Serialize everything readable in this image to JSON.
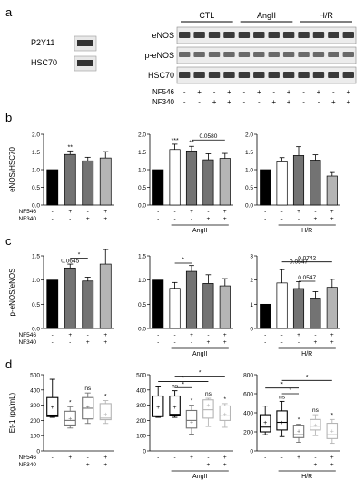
{
  "panel_letters": {
    "a": "a",
    "b": "b",
    "c": "c",
    "d": "d"
  },
  "western": {
    "small_labels": [
      "P2Y11",
      "HSC70"
    ],
    "group_labels": [
      "CTL",
      "AngII",
      "H/R"
    ],
    "row_labels": [
      "eNOS",
      "p-eNOS",
      "HSC70"
    ],
    "treatment_rows": [
      {
        "name": "NF546",
        "signs": [
          "-",
          "+",
          "-",
          "+",
          "-",
          "+",
          "-",
          "+",
          "-",
          "+",
          "-",
          "+"
        ]
      },
      {
        "name": "NF340",
        "signs": [
          "-",
          "-",
          "+",
          "+",
          "-",
          "-",
          "+",
          "+",
          "-",
          "-",
          "+",
          "+"
        ]
      }
    ]
  },
  "condition_labels": {
    "col1": "",
    "col2": "AngII",
    "col3": "H/R"
  },
  "tx": {
    "nf546": "NF546",
    "nf340": "NF340",
    "row1": [
      "-",
      "+",
      "-",
      "+"
    ],
    "row2": [
      "-",
      "-",
      "+",
      "+"
    ]
  },
  "colors": {
    "black": "#000000",
    "white": "#ffffff",
    "dark_gray": "#737373",
    "light_gray": "#b5b5b5"
  },
  "chart_data": [
    {
      "id": "b1",
      "type": "bar",
      "ylabel": "eNOS/HSC70",
      "ylim": [
        0,
        2
      ],
      "yticks": [
        "0.0",
        "0.5",
        "1.0",
        "1.5",
        "2.0"
      ],
      "values": [
        1.0,
        1.43,
        1.25,
        1.33
      ],
      "errors": [
        0,
        0.1,
        0.1,
        0.18
      ],
      "fills": [
        "#000000",
        "#737373",
        "#737373",
        "#b5b5b5"
      ],
      "stars": [
        "",
        "**",
        "",
        ""
      ],
      "brackets": []
    },
    {
      "id": "b2",
      "type": "bar",
      "ylabel": "",
      "ylim": [
        0,
        2
      ],
      "yticks": [
        "0.0",
        "0.5",
        "1.0",
        "1.5",
        "2.0"
      ],
      "values": [
        1.0,
        1.57,
        1.53,
        1.28,
        1.32
      ],
      "errors": [
        0,
        0.15,
        0.13,
        0.17,
        0.14
      ],
      "fills": [
        "#000000",
        "#ffffff",
        "#737373",
        "#737373",
        "#b5b5b5"
      ],
      "stars": [
        "",
        "***",
        "**",
        "",
        ""
      ],
      "brackets": [
        {
          "from": 2,
          "to": 4,
          "label": "0.0580"
        }
      ]
    },
    {
      "id": "b3",
      "type": "bar",
      "ylabel": "",
      "ylim": [
        0,
        2
      ],
      "yticks": [
        "0.0",
        "0.5",
        "1.0",
        "1.5",
        "2.0"
      ],
      "values": [
        1.0,
        1.22,
        1.4,
        1.27,
        0.82
      ],
      "errors": [
        0,
        0.12,
        0.25,
        0.15,
        0.1
      ],
      "fills": [
        "#000000",
        "#ffffff",
        "#737373",
        "#737373",
        "#b5b5b5"
      ],
      "stars": [
        "",
        "",
        "",
        "",
        ""
      ],
      "brackets": []
    },
    {
      "id": "c1",
      "type": "bar",
      "ylabel": "p-eNOS/eNOS",
      "ylim": [
        0,
        1.5
      ],
      "yticks": [
        "0.0",
        "0.5",
        "1.0",
        "1.5"
      ],
      "values": [
        1.0,
        1.25,
        0.98,
        1.33
      ],
      "errors": [
        0,
        0.08,
        0.08,
        0.3
      ],
      "fills": [
        "#000000",
        "#737373",
        "#737373",
        "#b5b5b5"
      ],
      "stars": [
        "",
        "",
        "",
        ""
      ],
      "brackets": [
        {
          "from": 1,
          "to": 2,
          "label": "*",
          "level": 1.45
        },
        {
          "from": 0,
          "to": 1,
          "label": "0.0645",
          "level": 1.32,
          "nobar": true
        }
      ]
    },
    {
      "id": "c2",
      "type": "bar",
      "ylabel": "",
      "ylim": [
        0,
        1.5
      ],
      "yticks": [
        "0.0",
        "0.5",
        "1.0",
        "1.5"
      ],
      "values": [
        1.0,
        0.83,
        1.18,
        0.93,
        0.88
      ],
      "errors": [
        0,
        0.12,
        0.12,
        0.18,
        0.15
      ],
      "fills": [
        "#000000",
        "#ffffff",
        "#737373",
        "#737373",
        "#b5b5b5"
      ],
      "stars": [
        "",
        "",
        "",
        "",
        ""
      ],
      "brackets": [
        {
          "from": 1,
          "to": 2,
          "label": "*",
          "level": 1.35
        }
      ]
    },
    {
      "id": "c3",
      "type": "bar",
      "ylabel": "",
      "ylim": [
        0,
        3
      ],
      "yticks": [
        "0",
        "1",
        "2",
        "3"
      ],
      "values": [
        1.0,
        1.88,
        1.65,
        1.22,
        1.7
      ],
      "errors": [
        0,
        0.55,
        0.28,
        0.3,
        0.33
      ],
      "fills": [
        "#000000",
        "#ffffff",
        "#737373",
        "#737373",
        "#b5b5b5"
      ],
      "stars": [
        "",
        "",
        "",
        "",
        ""
      ],
      "brackets": [
        {
          "from": 1,
          "to": 4,
          "label": "0.0742",
          "level": 2.75
        },
        {
          "from": 1,
          "to": 3,
          "label": "0.0547",
          "level": 2.6,
          "labelonly": true
        },
        {
          "from": 2,
          "to": 3,
          "label": "0.0547",
          "level": 1.95
        }
      ]
    },
    {
      "id": "d1",
      "type": "box",
      "ylabel": "Et-1 (pg/mL)",
      "ylim": [
        0,
        500
      ],
      "yticks": [
        "0",
        "100",
        "200",
        "300",
        "400",
        "500"
      ],
      "boxes": [
        {
          "min": 220,
          "q1": 225,
          "med": 235,
          "q3": 350,
          "max": 470,
          "mean": 290,
          "color": "#000000"
        },
        {
          "min": 150,
          "q1": 170,
          "med": 200,
          "q3": 260,
          "max": 290,
          "mean": 210,
          "color": "#737373"
        },
        {
          "min": 180,
          "q1": 210,
          "med": 280,
          "q3": 350,
          "max": 380,
          "mean": 290,
          "color": "#737373"
        },
        {
          "min": 180,
          "q1": 205,
          "med": 215,
          "q3": 310,
          "max": 330,
          "mean": 240,
          "color": "#b5b5b5"
        }
      ],
      "stars": [
        "",
        "*",
        "ns",
        "*"
      ],
      "brackets": []
    },
    {
      "id": "d2",
      "type": "box",
      "ylabel": "",
      "ylim": [
        0,
        500
      ],
      "yticks": [
        "0",
        "100",
        "200",
        "300",
        "400",
        "500"
      ],
      "boxes": [
        {
          "min": 220,
          "q1": 225,
          "med": 230,
          "q3": 360,
          "max": 420,
          "mean": 290,
          "color": "#000000"
        },
        {
          "min": 220,
          "q1": 235,
          "med": 240,
          "q3": 360,
          "max": 395,
          "mean": 290,
          "color": "#000000"
        },
        {
          "min": 110,
          "q1": 150,
          "med": 200,
          "q3": 265,
          "max": 300,
          "mean": 190,
          "color": "#737373"
        },
        {
          "min": 160,
          "q1": 215,
          "med": 270,
          "q3": 335,
          "max": 345,
          "mean": 300,
          "color": "#b5b5b5"
        },
        {
          "min": 155,
          "q1": 200,
          "med": 230,
          "q3": 295,
          "max": 310,
          "mean": 240,
          "color": "#b5b5b5"
        }
      ],
      "stars": [
        "",
        "ns",
        "*",
        "ns",
        "*"
      ],
      "brackets": [
        {
          "from": 1,
          "to": 2,
          "label": "*",
          "level": 415
        },
        {
          "from": 0,
          "to": 3,
          "label": "*",
          "level": 455
        },
        {
          "from": 1,
          "to": 4,
          "label": "*",
          "level": 490
        }
      ]
    },
    {
      "id": "d3",
      "type": "box",
      "ylabel": "",
      "ylim": [
        0,
        800
      ],
      "yticks": [
        "0",
        "200",
        "400",
        "600",
        "800"
      ],
      "boxes": [
        {
          "min": 170,
          "q1": 200,
          "med": 250,
          "q3": 380,
          "max": 470,
          "mean": 300,
          "color": "#000000"
        },
        {
          "min": 150,
          "q1": 220,
          "med": 300,
          "q3": 420,
          "max": 520,
          "mean": 300,
          "color": "#000000"
        },
        {
          "min": 90,
          "q1": 140,
          "med": 170,
          "q3": 270,
          "max": 280,
          "mean": 210,
          "color": "#737373"
        },
        {
          "min": 160,
          "q1": 220,
          "med": 260,
          "q3": 330,
          "max": 380,
          "mean": 270,
          "color": "#b5b5b5"
        },
        {
          "min": 80,
          "q1": 130,
          "med": 170,
          "q3": 290,
          "max": 330,
          "mean": 210,
          "color": "#b5b5b5"
        }
      ],
      "stars": [
        "",
        "ns",
        "*",
        "ns",
        "*"
      ],
      "brackets": [
        {
          "from": 1,
          "to": 2,
          "label": "*",
          "level": 600
        },
        {
          "from": 0,
          "to": 2,
          "label": "*",
          "level": 660
        },
        {
          "from": 1,
          "to": 4,
          "label": "*",
          "level": 740
        }
      ]
    }
  ]
}
